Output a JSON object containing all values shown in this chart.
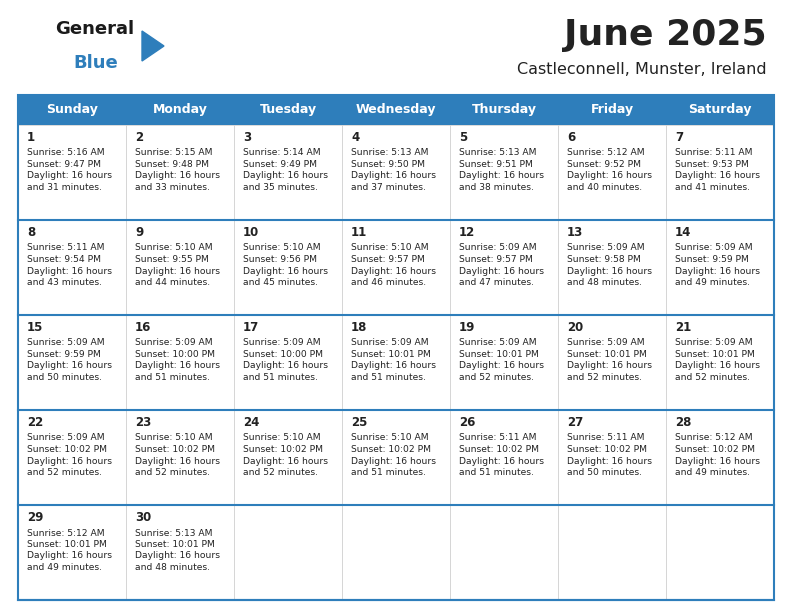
{
  "title": "June 2025",
  "subtitle": "Castleconnell, Munster, Ireland",
  "header_color": "#2e7ebb",
  "header_text_color": "#ffffff",
  "bg_color": "#ffffff",
  "border_color": "#2e7ebb",
  "row_divider_color": "#2e7ebb",
  "cell_border_color": "#cccccc",
  "text_color": "#222222",
  "days_of_week": [
    "Sunday",
    "Monday",
    "Tuesday",
    "Wednesday",
    "Thursday",
    "Friday",
    "Saturday"
  ],
  "weeks": [
    [
      {
        "day": 1,
        "sunrise": "5:16 AM",
        "sunset": "9:47 PM",
        "daylight": "16 hours and 31 minutes."
      },
      {
        "day": 2,
        "sunrise": "5:15 AM",
        "sunset": "9:48 PM",
        "daylight": "16 hours and 33 minutes."
      },
      {
        "day": 3,
        "sunrise": "5:14 AM",
        "sunset": "9:49 PM",
        "daylight": "16 hours and 35 minutes."
      },
      {
        "day": 4,
        "sunrise": "5:13 AM",
        "sunset": "9:50 PM",
        "daylight": "16 hours and 37 minutes."
      },
      {
        "day": 5,
        "sunrise": "5:13 AM",
        "sunset": "9:51 PM",
        "daylight": "16 hours and 38 minutes."
      },
      {
        "day": 6,
        "sunrise": "5:12 AM",
        "sunset": "9:52 PM",
        "daylight": "16 hours and 40 minutes."
      },
      {
        "day": 7,
        "sunrise": "5:11 AM",
        "sunset": "9:53 PM",
        "daylight": "16 hours and 41 minutes."
      }
    ],
    [
      {
        "day": 8,
        "sunrise": "5:11 AM",
        "sunset": "9:54 PM",
        "daylight": "16 hours and 43 minutes."
      },
      {
        "day": 9,
        "sunrise": "5:10 AM",
        "sunset": "9:55 PM",
        "daylight": "16 hours and 44 minutes."
      },
      {
        "day": 10,
        "sunrise": "5:10 AM",
        "sunset": "9:56 PM",
        "daylight": "16 hours and 45 minutes."
      },
      {
        "day": 11,
        "sunrise": "5:10 AM",
        "sunset": "9:57 PM",
        "daylight": "16 hours and 46 minutes."
      },
      {
        "day": 12,
        "sunrise": "5:09 AM",
        "sunset": "9:57 PM",
        "daylight": "16 hours and 47 minutes."
      },
      {
        "day": 13,
        "sunrise": "5:09 AM",
        "sunset": "9:58 PM",
        "daylight": "16 hours and 48 minutes."
      },
      {
        "day": 14,
        "sunrise": "5:09 AM",
        "sunset": "9:59 PM",
        "daylight": "16 hours and 49 minutes."
      }
    ],
    [
      {
        "day": 15,
        "sunrise": "5:09 AM",
        "sunset": "9:59 PM",
        "daylight": "16 hours and 50 minutes."
      },
      {
        "day": 16,
        "sunrise": "5:09 AM",
        "sunset": "10:00 PM",
        "daylight": "16 hours and 51 minutes."
      },
      {
        "day": 17,
        "sunrise": "5:09 AM",
        "sunset": "10:00 PM",
        "daylight": "16 hours and 51 minutes."
      },
      {
        "day": 18,
        "sunrise": "5:09 AM",
        "sunset": "10:01 PM",
        "daylight": "16 hours and 51 minutes."
      },
      {
        "day": 19,
        "sunrise": "5:09 AM",
        "sunset": "10:01 PM",
        "daylight": "16 hours and 52 minutes."
      },
      {
        "day": 20,
        "sunrise": "5:09 AM",
        "sunset": "10:01 PM",
        "daylight": "16 hours and 52 minutes."
      },
      {
        "day": 21,
        "sunrise": "5:09 AM",
        "sunset": "10:01 PM",
        "daylight": "16 hours and 52 minutes."
      }
    ],
    [
      {
        "day": 22,
        "sunrise": "5:09 AM",
        "sunset": "10:02 PM",
        "daylight": "16 hours and 52 minutes."
      },
      {
        "day": 23,
        "sunrise": "5:10 AM",
        "sunset": "10:02 PM",
        "daylight": "16 hours and 52 minutes."
      },
      {
        "day": 24,
        "sunrise": "5:10 AM",
        "sunset": "10:02 PM",
        "daylight": "16 hours and 52 minutes."
      },
      {
        "day": 25,
        "sunrise": "5:10 AM",
        "sunset": "10:02 PM",
        "daylight": "16 hours and 51 minutes."
      },
      {
        "day": 26,
        "sunrise": "5:11 AM",
        "sunset": "10:02 PM",
        "daylight": "16 hours and 51 minutes."
      },
      {
        "day": 27,
        "sunrise": "5:11 AM",
        "sunset": "10:02 PM",
        "daylight": "16 hours and 50 minutes."
      },
      {
        "day": 28,
        "sunrise": "5:12 AM",
        "sunset": "10:02 PM",
        "daylight": "16 hours and 49 minutes."
      }
    ],
    [
      {
        "day": 29,
        "sunrise": "5:12 AM",
        "sunset": "10:01 PM",
        "daylight": "16 hours and 49 minutes."
      },
      {
        "day": 30,
        "sunrise": "5:13 AM",
        "sunset": "10:01 PM",
        "daylight": "16 hours and 48 minutes."
      },
      null,
      null,
      null,
      null,
      null
    ]
  ],
  "logo_color_general": "#1a1a1a",
  "logo_color_blue": "#2e7ebb",
  "logo_triangle_color": "#2e7ebb"
}
